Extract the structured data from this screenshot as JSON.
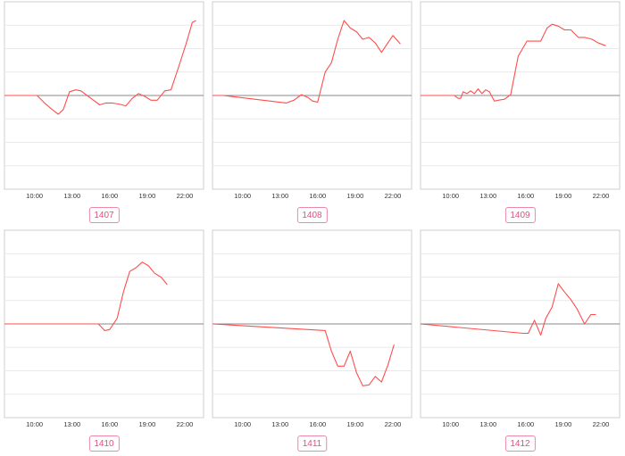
{
  "style": {
    "line_color": "#ff4d4d",
    "grid_color": "#e9e9e9",
    "frame_color": "#cfcfcf",
    "zero_line_color": "#8a8a8a",
    "badge_color": "#e0507a"
  },
  "x_axis": {
    "ticks": [
      "10:00",
      "13:00",
      "16:00",
      "19:00",
      "22:00"
    ],
    "tick_hours": [
      10,
      13,
      16,
      19,
      22
    ],
    "range_hours": [
      7.6,
      23.5
    ]
  },
  "chart_data": [
    {
      "type": "line",
      "id": "1407",
      "ylim": [
        -1,
        1
      ],
      "grid": true,
      "x": [
        7.6,
        10.2,
        10.8,
        11.4,
        11.9,
        12.3,
        12.8,
        13.3,
        13.7,
        14.2,
        14.6,
        15.2,
        15.7,
        16.2,
        16.7,
        17.3,
        17.8,
        18.3,
        18.8,
        19.3,
        19.8,
        20.4,
        20.9,
        21.5,
        22.1,
        22.6,
        22.9
      ],
      "y": [
        0,
        0,
        -0.08,
        -0.15,
        -0.2,
        -0.15,
        0.04,
        0.06,
        0.05,
        0,
        -0.04,
        -0.1,
        -0.08,
        -0.08,
        -0.09,
        -0.11,
        -0.03,
        0.02,
        -0.01,
        -0.05,
        -0.05,
        0.05,
        0.06,
        0.3,
        0.55,
        0.78,
        0.8
      ]
    },
    {
      "type": "line",
      "id": "1408",
      "ylim": [
        -1,
        1
      ],
      "grid": true,
      "x": [
        7.6,
        8.5,
        13.5,
        14.1,
        14.7,
        15.2,
        15.6,
        16.0,
        16.6,
        17.1,
        17.6,
        18.1,
        18.6,
        19.1,
        19.6,
        20.1,
        20.6,
        21.1,
        21.5,
        22.0,
        22.6
      ],
      "y": [
        0,
        0,
        -0.08,
        -0.05,
        0.01,
        -0.02,
        -0.06,
        -0.07,
        0.25,
        0.35,
        0.6,
        0.8,
        0.72,
        0.68,
        0.6,
        0.62,
        0.56,
        0.46,
        0.54,
        0.64,
        0.55
      ]
    },
    {
      "type": "line",
      "id": "1409",
      "ylim": [
        -1,
        1
      ],
      "grid": true,
      "x": [
        7.6,
        10.3,
        10.6,
        10.8,
        11.0,
        11.3,
        11.6,
        11.9,
        12.2,
        12.5,
        12.8,
        13.1,
        13.5,
        13.8,
        14.3,
        14.8,
        15.4,
        16.1,
        16.6,
        17.2,
        17.7,
        18.1,
        18.6,
        19.1,
        19.6,
        20.2,
        20.7,
        21.3,
        21.8,
        22.4
      ],
      "y": [
        0,
        0,
        -0.03,
        -0.03,
        0.04,
        0.02,
        0.05,
        0.02,
        0.07,
        0.02,
        0.06,
        0.04,
        -0.06,
        -0.05,
        -0.04,
        0.01,
        0.42,
        0.58,
        0.58,
        0.58,
        0.72,
        0.76,
        0.74,
        0.7,
        0.7,
        0.62,
        0.62,
        0.6,
        0.56,
        0.53
      ]
    },
    {
      "type": "line",
      "id": "1410",
      "ylim": [
        -1,
        1
      ],
      "grid": true,
      "x": [
        7.6,
        15.1,
        15.6,
        16.0,
        16.6,
        17.1,
        17.6,
        18.1,
        18.6,
        19.1,
        19.6,
        20.1,
        20.6
      ],
      "y": [
        0,
        0,
        -0.07,
        -0.06,
        0.06,
        0.34,
        0.56,
        0.6,
        0.66,
        0.62,
        0.54,
        0.5,
        0.42
      ]
    },
    {
      "type": "line",
      "id": "1411",
      "ylim": [
        -1,
        1
      ],
      "grid": true,
      "x": [
        7.6,
        16.6,
        17.1,
        17.6,
        18.1,
        18.6,
        19.1,
        19.6,
        20.1,
        20.6,
        21.1,
        21.6,
        22.1
      ],
      "y": [
        0,
        -0.07,
        -0.29,
        -0.45,
        -0.45,
        -0.29,
        -0.52,
        -0.66,
        -0.65,
        -0.56,
        -0.62,
        -0.44,
        -0.22
      ]
    },
    {
      "type": "line",
      "id": "1412",
      "ylim": [
        -1,
        1
      ],
      "grid": true,
      "x": [
        7.6,
        15.8,
        16.2,
        16.7,
        17.2,
        17.6,
        18.1,
        18.6,
        19.1,
        19.6,
        20.1,
        20.7,
        21.2,
        21.6
      ],
      "y": [
        0,
        -0.1,
        -0.1,
        0.04,
        -0.12,
        0.06,
        0.18,
        0.43,
        0.34,
        0.26,
        0.16,
        0.0,
        0.1,
        0.1
      ]
    }
  ]
}
